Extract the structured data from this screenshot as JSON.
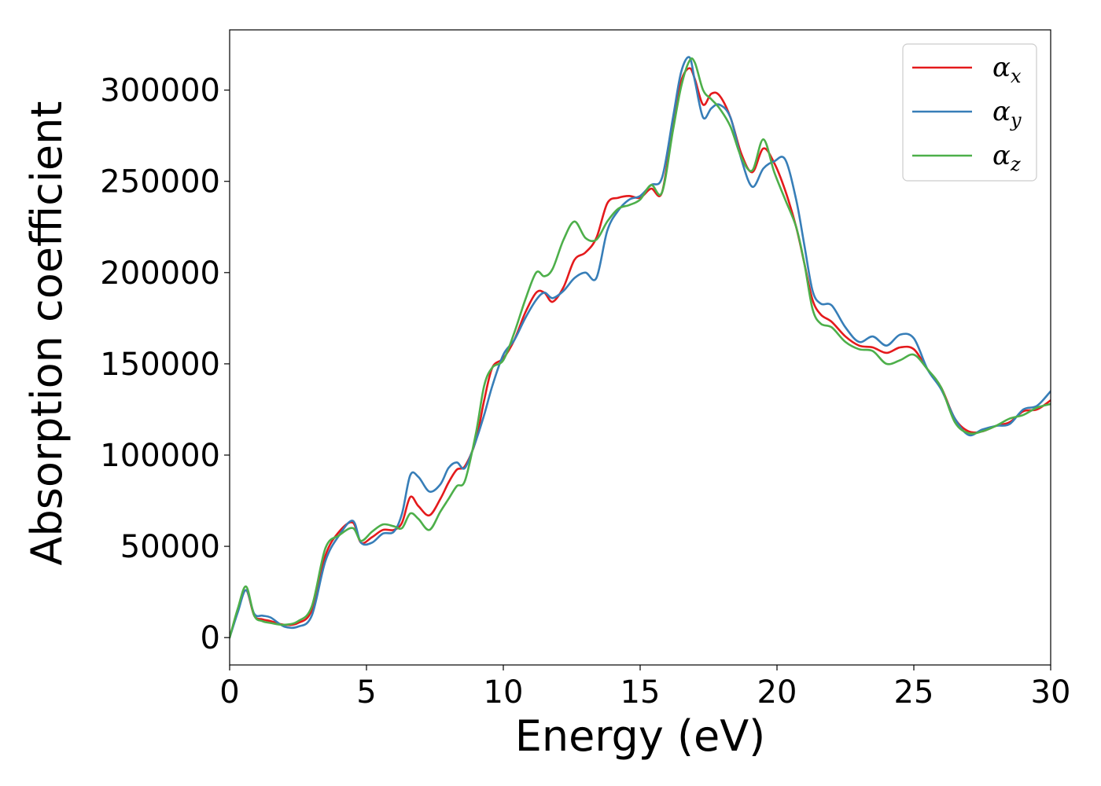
{
  "chart_data": {
    "type": "line",
    "xlabel": "Energy (eV)",
    "ylabel": "Absorption coefficient",
    "xlim": [
      0,
      30
    ],
    "ylim": [
      -15000,
      333000
    ],
    "xticks": [
      0,
      5,
      10,
      15,
      20,
      25,
      30
    ],
    "yticks": [
      0,
      50000,
      100000,
      150000,
      200000,
      250000,
      300000
    ],
    "grid": false,
    "legend_position": "top-right",
    "series": [
      {
        "name": "α_x",
        "symbol": "α",
        "subscript": "x",
        "color": "#e41a1c",
        "x": [
          0,
          0.3,
          0.6,
          0.9,
          1.2,
          1.5,
          2.0,
          2.5,
          3.0,
          3.5,
          4.0,
          4.5,
          4.8,
          5.2,
          5.6,
          6.0,
          6.3,
          6.6,
          6.9,
          7.3,
          7.7,
          8.0,
          8.3,
          8.6,
          9.0,
          9.3,
          9.6,
          10.0,
          10.4,
          10.8,
          11.2,
          11.5,
          11.8,
          12.2,
          12.6,
          13.0,
          13.4,
          13.8,
          14.2,
          14.6,
          15.0,
          15.4,
          15.8,
          16.2,
          16.5,
          16.8,
          17.0,
          17.3,
          17.6,
          17.9,
          18.3,
          18.7,
          19.1,
          19.5,
          19.9,
          20.3,
          20.7,
          21.0,
          21.3,
          21.6,
          22.0,
          22.5,
          23.0,
          23.5,
          24.0,
          24.5,
          25.0,
          25.5,
          26.0,
          26.5,
          27.0,
          27.5,
          28.0,
          28.5,
          29.0,
          29.5,
          30.0
        ],
        "y": [
          0,
          15000,
          26000,
          12000,
          10000,
          9000,
          7000,
          8000,
          15000,
          45000,
          58000,
          63000,
          52000,
          55000,
          59000,
          59000,
          63000,
          77000,
          72000,
          67000,
          76000,
          85000,
          92000,
          94000,
          108000,
          130000,
          148000,
          153000,
          163000,
          178000,
          189000,
          189000,
          184000,
          192000,
          207000,
          211000,
          219000,
          238000,
          241000,
          242000,
          241000,
          246000,
          244000,
          282000,
          305000,
          312000,
          306000,
          292000,
          298000,
          297000,
          285000,
          265000,
          255000,
          268000,
          260000,
          245000,
          225000,
          205000,
          185000,
          177000,
          173000,
          165000,
          160000,
          159000,
          156000,
          159000,
          158000,
          147000,
          137000,
          120000,
          113000,
          113000,
          116000,
          118000,
          124000,
          125000,
          130000
        ]
      },
      {
        "name": "α_y",
        "symbol": "α",
        "subscript": "y",
        "color": "#377eb8",
        "x": [
          0,
          0.3,
          0.6,
          0.9,
          1.2,
          1.5,
          2.0,
          2.5,
          3.0,
          3.5,
          4.0,
          4.5,
          4.8,
          5.2,
          5.6,
          6.0,
          6.3,
          6.6,
          6.9,
          7.3,
          7.7,
          8.0,
          8.3,
          8.6,
          9.0,
          9.3,
          9.6,
          10.0,
          10.4,
          10.8,
          11.2,
          11.5,
          11.8,
          12.2,
          12.6,
          13.0,
          13.4,
          13.8,
          14.2,
          14.6,
          15.0,
          15.4,
          15.8,
          16.2,
          16.5,
          16.8,
          17.0,
          17.3,
          17.6,
          17.9,
          18.3,
          18.7,
          19.1,
          19.5,
          19.9,
          20.3,
          20.7,
          21.0,
          21.3,
          21.6,
          22.0,
          22.5,
          23.0,
          23.5,
          24.0,
          24.5,
          25.0,
          25.5,
          26.0,
          26.5,
          27.0,
          27.5,
          28.0,
          28.5,
          29.0,
          29.5,
          30.0
        ],
        "y": [
          0,
          14000,
          26000,
          13000,
          12000,
          11000,
          6000,
          6000,
          12000,
          42000,
          56000,
          64000,
          52000,
          52000,
          57000,
          58000,
          68000,
          89000,
          88000,
          80000,
          84000,
          93000,
          96000,
          93000,
          108000,
          122000,
          138000,
          155000,
          163000,
          175000,
          185000,
          189000,
          186000,
          190000,
          197000,
          200000,
          197000,
          223000,
          234000,
          240000,
          242000,
          248000,
          252000,
          285000,
          310000,
          318000,
          305000,
          285000,
          290000,
          292000,
          285000,
          262000,
          247000,
          257000,
          261000,
          262000,
          240000,
          215000,
          190000,
          183000,
          182000,
          170000,
          162000,
          165000,
          160000,
          166000,
          164000,
          147000,
          136000,
          120000,
          111000,
          114000,
          116000,
          117000,
          125000,
          127000,
          135000
        ]
      },
      {
        "name": "α_z",
        "symbol": "α",
        "subscript": "z",
        "color": "#4daf4a",
        "x": [
          0,
          0.3,
          0.6,
          0.9,
          1.2,
          1.5,
          2.0,
          2.5,
          3.0,
          3.5,
          4.0,
          4.5,
          4.8,
          5.2,
          5.6,
          6.0,
          6.3,
          6.6,
          6.9,
          7.3,
          7.7,
          8.0,
          8.3,
          8.6,
          9.0,
          9.3,
          9.6,
          10.0,
          10.4,
          10.8,
          11.2,
          11.5,
          11.8,
          12.2,
          12.6,
          13.0,
          13.4,
          13.8,
          14.2,
          14.6,
          15.0,
          15.4,
          15.8,
          16.2,
          16.5,
          16.8,
          17.0,
          17.3,
          17.6,
          17.9,
          18.3,
          18.7,
          19.1,
          19.5,
          19.9,
          20.3,
          20.7,
          21.0,
          21.3,
          21.6,
          22.0,
          22.5,
          23.0,
          23.5,
          24.0,
          24.5,
          25.0,
          25.5,
          26.0,
          26.5,
          27.0,
          27.5,
          28.0,
          28.5,
          29.0,
          29.5,
          30.0
        ],
        "y": [
          0,
          16000,
          28000,
          12000,
          9000,
          8000,
          7000,
          9000,
          17000,
          49000,
          56000,
          60000,
          53000,
          58000,
          62000,
          61000,
          60000,
          68000,
          65000,
          59000,
          69000,
          76000,
          83000,
          86000,
          112000,
          138000,
          148000,
          152000,
          167000,
          185000,
          200000,
          198000,
          202000,
          218000,
          228000,
          219000,
          218000,
          228000,
          235000,
          237000,
          240000,
          248000,
          244000,
          278000,
          302000,
          316000,
          315000,
          300000,
          295000,
          290000,
          280000,
          263000,
          256000,
          273000,
          255000,
          240000,
          225000,
          205000,
          180000,
          172000,
          170000,
          162000,
          158000,
          157000,
          150000,
          152000,
          155000,
          147000,
          137000,
          118000,
          112000,
          113000,
          116000,
          120000,
          122000,
          126000,
          128000
        ]
      }
    ]
  }
}
